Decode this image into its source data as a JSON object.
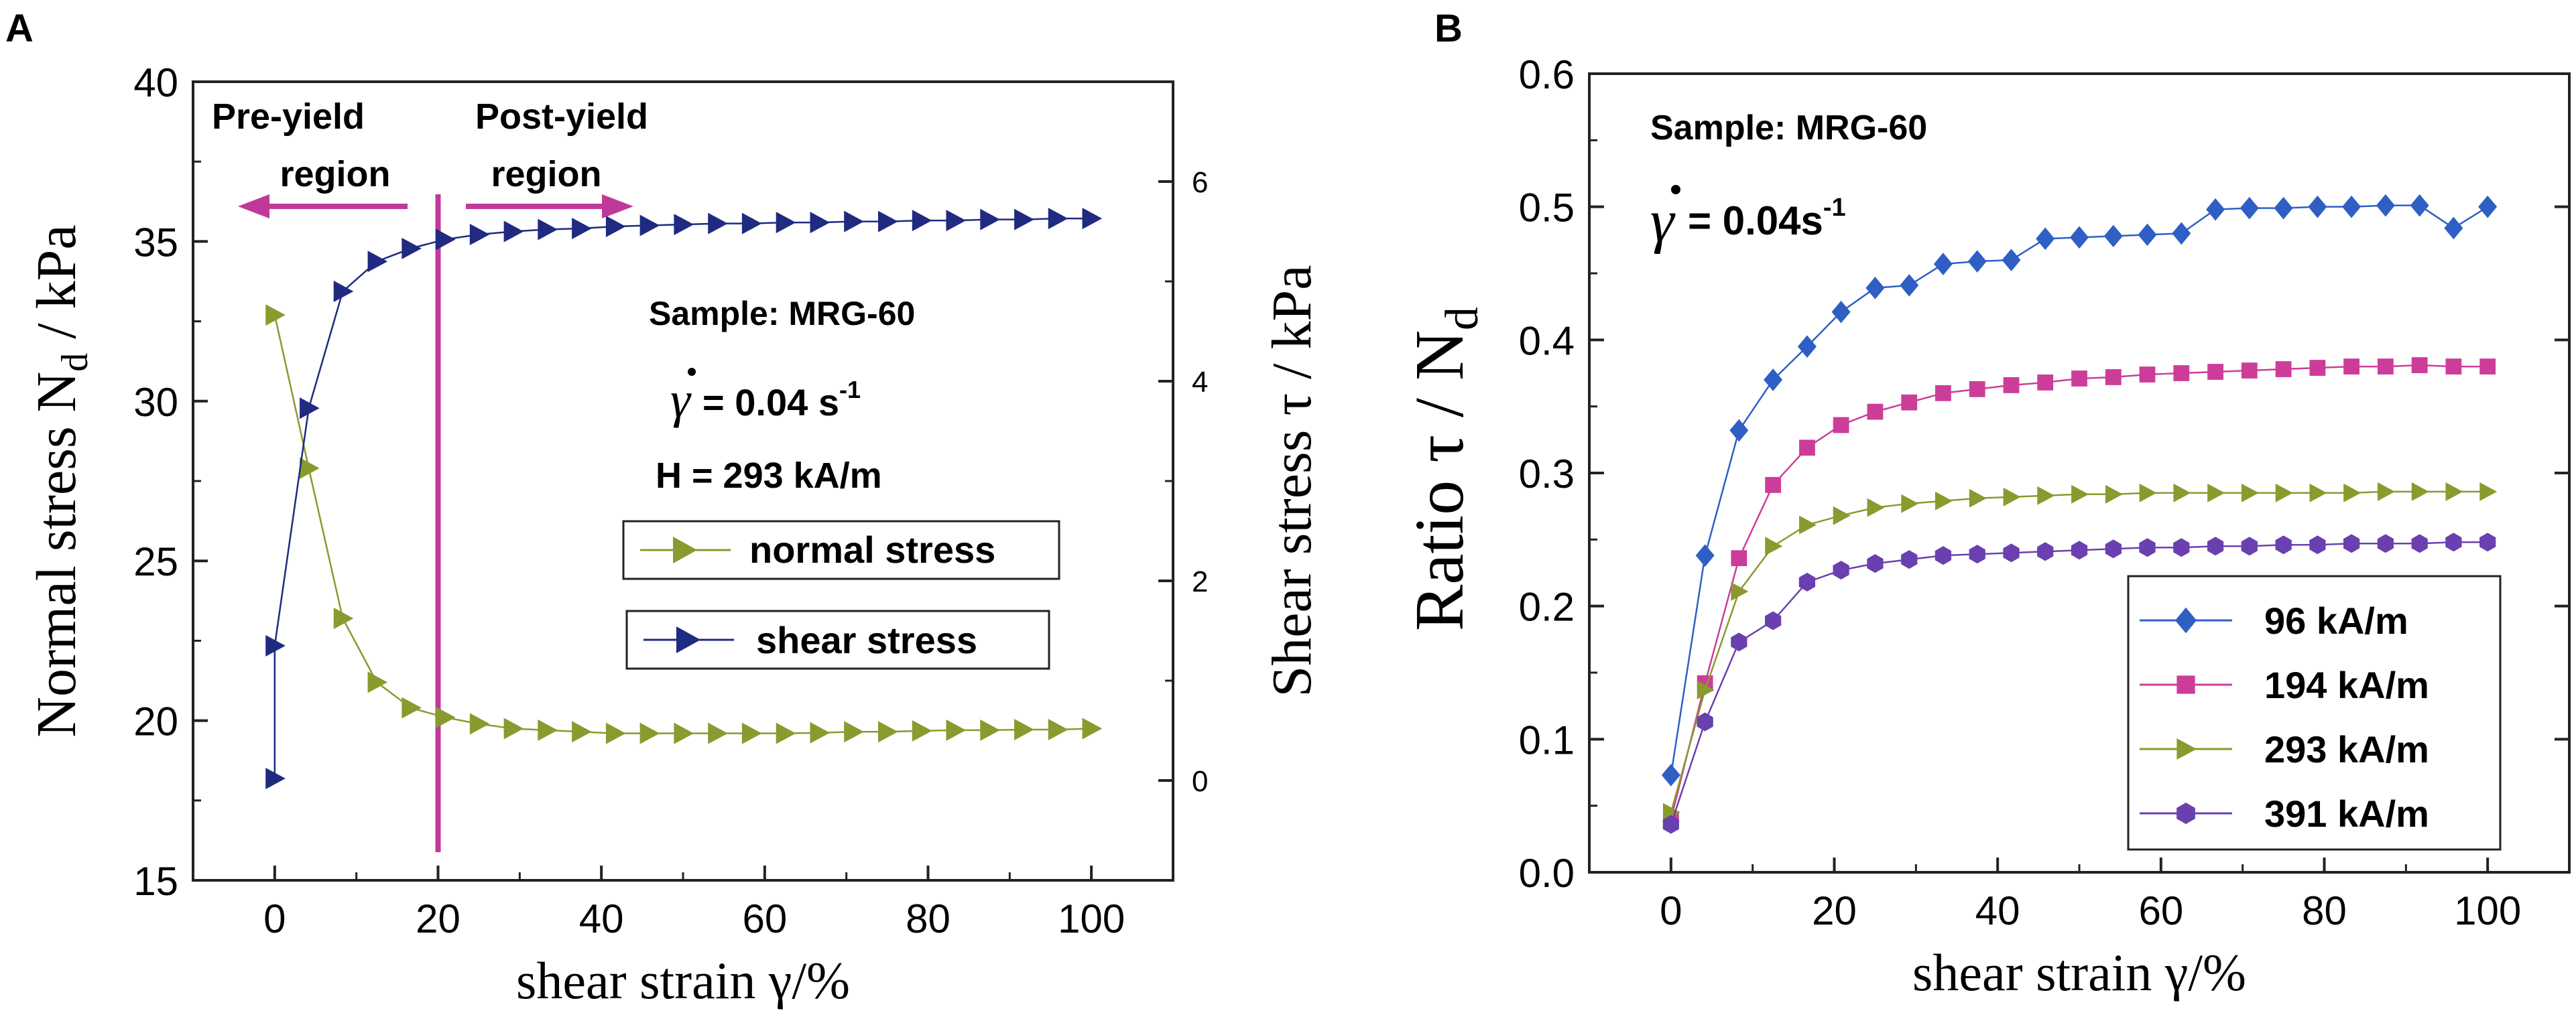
{
  "chart_data": [
    {
      "type": "scatter",
      "panel_label": "A",
      "xlabel": "shear strain γ/%",
      "ylabel": "Normal stress N",
      "ylabel_sub": "d",
      "ylabel_unit": " / kPa",
      "y2label": "Shear stress τ / kPa",
      "xlim": [
        -10,
        110
      ],
      "ylim": [
        15,
        40
      ],
      "y2lim": [
        -1,
        7
      ],
      "x_ticks": [
        0,
        20,
        40,
        60,
        80,
        100
      ],
      "y_ticks": [
        15,
        20,
        25,
        30,
        35,
        40
      ],
      "y2_ticks": [
        0,
        2,
        4,
        6
      ],
      "grid": false,
      "series": [
        {
          "name": "normal stress",
          "axis": "left",
          "color": "#8a9a2e",
          "marker": "triangle-right",
          "x": [
            0,
            4.17,
            8.33,
            12.5,
            16.67,
            20.83,
            25,
            29.17,
            33.33,
            37.5,
            41.67,
            45.83,
            50,
            54.17,
            58.33,
            62.5,
            66.67,
            70.83,
            75,
            79.17,
            83.33,
            87.5,
            91.67,
            95.83,
            100
          ],
          "values": [
            32.7,
            27.9,
            23.2,
            21.2,
            20.4,
            20.1,
            19.9,
            19.75,
            19.7,
            19.65,
            19.6,
            19.6,
            19.6,
            19.6,
            19.6,
            19.6,
            19.62,
            19.65,
            19.65,
            19.68,
            19.7,
            19.7,
            19.72,
            19.72,
            19.75
          ]
        },
        {
          "name": "shear stress",
          "axis": "right",
          "color": "#1f2a80",
          "marker": "triangle-right",
          "x": [
            0,
            0,
            4.17,
            8.33,
            12.5,
            16.67,
            20.83,
            25,
            29.17,
            33.33,
            37.5,
            41.67,
            45.83,
            50,
            54.17,
            58.33,
            62.5,
            66.67,
            70.83,
            75,
            79.17,
            83.33,
            87.5,
            91.67,
            95.83,
            100
          ],
          "values": [
            0.02,
            1.35,
            3.73,
            4.9,
            5.2,
            5.33,
            5.42,
            5.47,
            5.5,
            5.52,
            5.53,
            5.55,
            5.56,
            5.57,
            5.58,
            5.58,
            5.59,
            5.59,
            5.6,
            5.6,
            5.61,
            5.61,
            5.62,
            5.62,
            5.63,
            5.63
          ]
        }
      ],
      "annotations": {
        "pre_yield_line1": "Pre-yield",
        "pre_yield_line2": "region",
        "post_yield_line1": "Post-yield",
        "post_yield_line2": "region",
        "yield_strain": 20,
        "sample": "Sample: MRG-60",
        "rate_value": "= 0.04 s",
        "rate_exp": "-1",
        "field": "H = 293 kA/m",
        "line_color": "#c0399a"
      }
    },
    {
      "type": "scatter",
      "panel_label": "B",
      "xlabel": "shear strain γ/%",
      "ylabel": "Ratio  τ / N",
      "ylabel_sub": "d",
      "xlim": [
        -10,
        110
      ],
      "ylim": [
        0.0,
        0.6
      ],
      "x_ticks": [
        0,
        20,
        40,
        60,
        80,
        100
      ],
      "y_ticks": [
        "0.0",
        "0.1",
        "0.2",
        "0.3",
        "0.4",
        "0.5",
        "0.6"
      ],
      "grid": false,
      "legend_position": "bottom-right",
      "annotations": {
        "sample": "Sample: MRG-60",
        "rate_value": "= 0.04s",
        "rate_exp": "-1"
      },
      "x": [
        0,
        4.17,
        8.33,
        12.5,
        16.67,
        20.83,
        25,
        29.17,
        33.33,
        37.5,
        41.67,
        45.83,
        50,
        54.17,
        58.33,
        62.5,
        66.67,
        70.83,
        75,
        79.17,
        83.33,
        87.5,
        91.67,
        95.83,
        100
      ],
      "series": [
        {
          "name": "96 kA/m",
          "color": "#2f5fc4",
          "marker": "diamond",
          "values": [
            0.073,
            0.238,
            0.332,
            0.37,
            0.395,
            0.421,
            0.439,
            0.441,
            0.457,
            0.459,
            0.46,
            0.476,
            0.477,
            0.478,
            0.479,
            0.48,
            0.498,
            0.499,
            0.499,
            0.5,
            0.5,
            0.501,
            0.501,
            0.484,
            0.5
          ]
        },
        {
          "name": "194 kA/m",
          "color": "#cc3d99",
          "marker": "square",
          "values": [
            0.04,
            0.142,
            0.236,
            0.291,
            0.319,
            0.336,
            0.346,
            0.353,
            0.36,
            0.363,
            0.366,
            0.368,
            0.371,
            0.372,
            0.374,
            0.375,
            0.376,
            0.377,
            0.378,
            0.379,
            0.38,
            0.38,
            0.381,
            0.38,
            0.38
          ]
        },
        {
          "name": "293 kA/m",
          "color": "#8a9a2e",
          "marker": "triangle-right",
          "values": [
            0.045,
            0.137,
            0.211,
            0.245,
            0.261,
            0.268,
            0.274,
            0.277,
            0.279,
            0.281,
            0.282,
            0.283,
            0.284,
            0.284,
            0.285,
            0.285,
            0.285,
            0.285,
            0.285,
            0.285,
            0.285,
            0.286,
            0.286,
            0.286,
            0.286
          ]
        },
        {
          "name": "391 kA/m",
          "color": "#6a40b0",
          "marker": "hexagon",
          "values": [
            0.036,
            0.113,
            0.173,
            0.189,
            0.218,
            0.227,
            0.232,
            0.235,
            0.238,
            0.239,
            0.24,
            0.241,
            0.242,
            0.243,
            0.244,
            0.244,
            0.245,
            0.245,
            0.246,
            0.246,
            0.247,
            0.247,
            0.247,
            0.248,
            0.248
          ]
        }
      ]
    }
  ]
}
